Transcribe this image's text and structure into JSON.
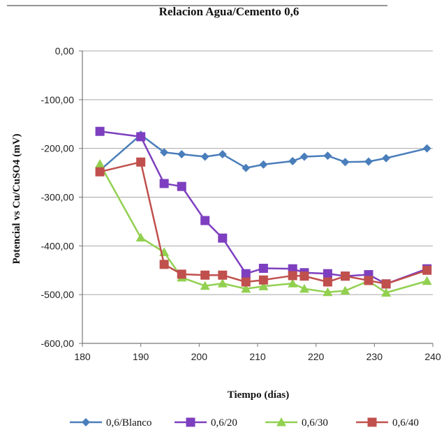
{
  "chart_data": {
    "type": "line",
    "title": "Relacion Agua/Cemento 0,6",
    "xlabel": "Tiempo (días)",
    "ylabel": "Potencial vs Cu/CuSO4 (mV)",
    "xlim": [
      180,
      240
    ],
    "ylim": [
      -600,
      0
    ],
    "x_ticks": [
      "180",
      "190",
      "200",
      "210",
      "220",
      "230",
      "240"
    ],
    "y_ticks": [
      "0,00",
      "-100,00",
      "-200,00",
      "-300,00",
      "-400,00",
      "-500,00",
      "-600,00"
    ],
    "grid": "horizontal",
    "legend_position": "bottom",
    "series": [
      {
        "name": "0,6/Blanco",
        "color": "#4a7ebb",
        "marker": "diamond",
        "x": [
          183,
          190,
          194,
          197,
          201,
          204,
          208,
          211,
          216,
          218,
          222,
          225,
          229,
          232,
          239
        ],
        "y": [
          -245,
          -172,
          -208,
          -212,
          -217,
          -212,
          -240,
          -233,
          -226,
          -217,
          -215,
          -228,
          -227,
          -220,
          -200
        ]
      },
      {
        "name": "0,6/20",
        "color": "#7d3fbf",
        "marker": "square",
        "x": [
          183,
          190,
          194,
          197,
          201,
          204,
          208,
          211,
          216,
          218,
          222,
          225,
          229,
          232,
          239
        ],
        "y": [
          -165,
          -176,
          -272,
          -278,
          -348,
          -384,
          -457,
          -446,
          -447,
          -455,
          -457,
          -462,
          -459,
          -478,
          -447
        ]
      },
      {
        "name": "0,6/30",
        "color": "#92d050",
        "marker": "triangle",
        "x": [
          183,
          190,
          194,
          197,
          201,
          204,
          208,
          211,
          216,
          218,
          222,
          225,
          229,
          232,
          239
        ],
        "y": [
          -232,
          -383,
          -413,
          -465,
          -482,
          -477,
          -488,
          -483,
          -477,
          -488,
          -495,
          -492,
          -472,
          -496,
          -472
        ]
      },
      {
        "name": "0,6/40",
        "color": "#c0504d",
        "marker": "square",
        "x": [
          183,
          190,
          194,
          197,
          201,
          204,
          208,
          211,
          216,
          218,
          222,
          225,
          229,
          232,
          239
        ],
        "y": [
          -248,
          -228,
          -438,
          -458,
          -460,
          -460,
          -474,
          -470,
          -461,
          -462,
          -474,
          -462,
          -471,
          -478,
          -450
        ]
      }
    ]
  }
}
